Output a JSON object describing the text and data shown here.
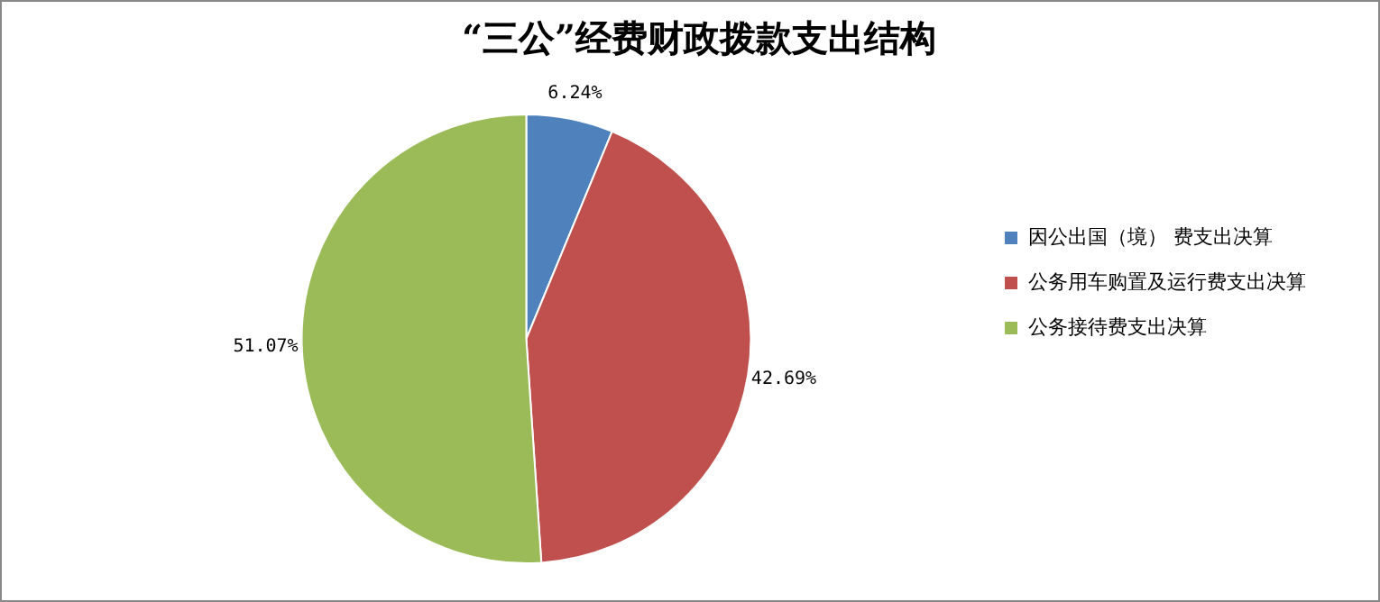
{
  "chart_data": {
    "type": "pie",
    "title": "“三公”经费财政拨款支出结构",
    "categories": [
      "因公出国（境） 费支出决算",
      "公务用车购置及运行费支出决算",
      "公务接待费支出决算"
    ],
    "values": [
      6.24,
      42.69,
      51.07
    ],
    "colors": [
      "#4f81bd",
      "#c0504d",
      "#9bbb59"
    ],
    "value_labels": [
      "6.24%",
      "42.69%",
      "51.07%"
    ],
    "legend": "right"
  }
}
